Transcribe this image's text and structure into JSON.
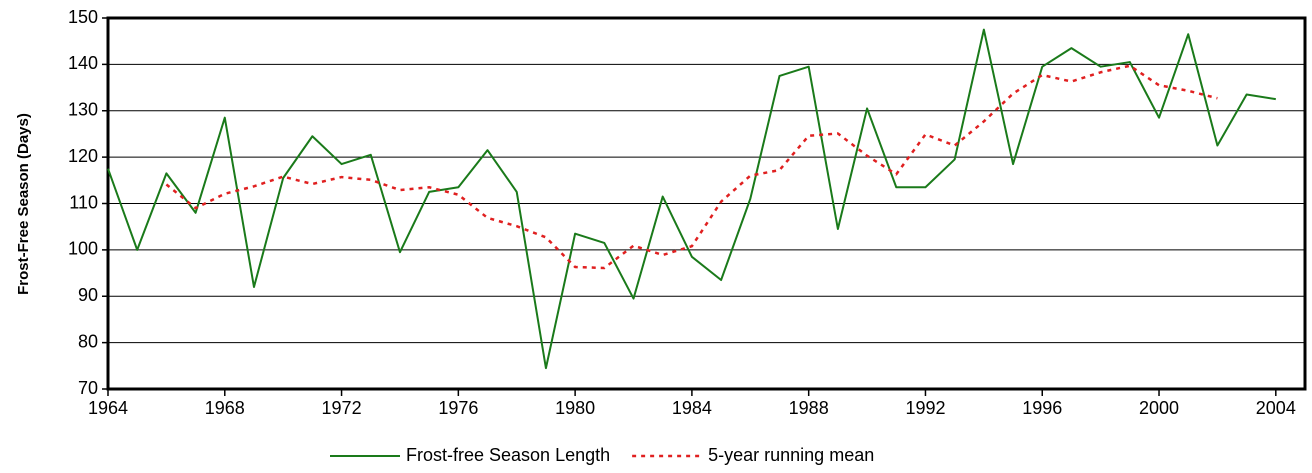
{
  "chart_data": {
    "type": "line",
    "y_label": "Frost-Free Season (Days)",
    "x": [
      1964,
      1965,
      1966,
      1967,
      1968,
      1969,
      1970,
      1971,
      1972,
      1973,
      1974,
      1975,
      1976,
      1977,
      1978,
      1979,
      1980,
      1981,
      1982,
      1983,
      1984,
      1985,
      1986,
      1987,
      1988,
      1989,
      1990,
      1991,
      1992,
      1993,
      1994,
      1995,
      1996,
      1997,
      1998,
      1999,
      2000,
      2001,
      2002,
      2003,
      2004
    ],
    "series": [
      {
        "name": "Frost-free Season Length",
        "color": "#1a7a1a",
        "style": "solid",
        "values": [
          117.5,
          100,
          116.5,
          108,
          128.5,
          92,
          115.5,
          124.5,
          118.5,
          120.5,
          99.5,
          112.5,
          113.5,
          121.5,
          112.5,
          74.5,
          103.5,
          101.5,
          89.5,
          111.5,
          98.5,
          93.5,
          111,
          137.5,
          139.5,
          104.5,
          130.5,
          113.5,
          113.5,
          119.5,
          147.5,
          118.5,
          139.5,
          143.5,
          139.5,
          140.5,
          128.5,
          146.5,
          122.5,
          133.5,
          132.5
        ]
      },
      {
        "name": "5-year running mean",
        "color": "#e02020",
        "style": "dotted",
        "values": [
          null,
          null,
          114.1,
          109,
          112.1,
          113.7,
          115.8,
          114.2,
          115.7,
          115.1,
          112.9,
          113.5,
          111.9,
          106.9,
          105.1,
          102.7,
          96.3,
          96.1,
          100.9,
          98.9,
          100.8,
          110.4,
          116,
          117.2,
          124.6,
          125.1,
          120.3,
          116.3,
          124.9,
          122.5,
          127.7,
          133.7,
          137.7,
          136.3,
          138.3,
          139.7,
          135.5,
          134.3,
          132.7,
          null,
          null
        ]
      }
    ],
    "xlim": [
      1964,
      2005
    ],
    "xticks": [
      1964,
      1968,
      1972,
      1976,
      1980,
      1984,
      1988,
      1992,
      1996,
      2000,
      2004
    ],
    "ylim": [
      70,
      150
    ],
    "yticks": [
      70,
      80,
      90,
      100,
      110,
      120,
      130,
      140,
      150
    ],
    "grid": true,
    "legend": "bottom"
  }
}
